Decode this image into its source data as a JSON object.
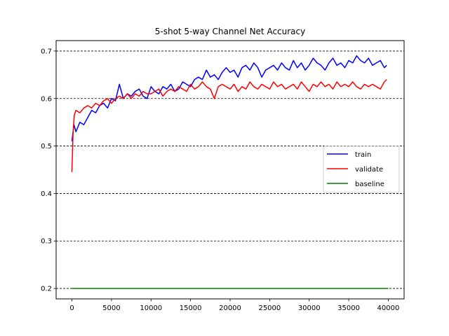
{
  "chart_data": {
    "type": "line",
    "title": "5-shot 5-way Channel Net Accuracy",
    "xlabel": "",
    "ylabel": "",
    "xlim": [
      -2000,
      42000
    ],
    "ylim": [
      0.178,
      0.722
    ],
    "xticks": [
      0,
      5000,
      10000,
      15000,
      20000,
      25000,
      30000,
      35000,
      40000
    ],
    "xtick_labels": [
      "0",
      "5000",
      "10000",
      "15000",
      "20000",
      "25000",
      "30000",
      "35000",
      "40000"
    ],
    "yticks": [
      0.2,
      0.3,
      0.4,
      0.5,
      0.6,
      0.7
    ],
    "ytick_labels": [
      "0.2",
      "0.3",
      "0.4",
      "0.5",
      "0.6",
      "0.7"
    ],
    "grid": "horizontal dashed",
    "legend_position": "center-right",
    "series": [
      {
        "name": "train",
        "color": "#0000ff",
        "x": [
          0,
          250,
          500,
          1000,
          1500,
          2000,
          2500,
          3000,
          3500,
          4000,
          4500,
          5000,
          5500,
          6000,
          6500,
          7000,
          7500,
          8000,
          8500,
          9000,
          9500,
          10000,
          10500,
          11000,
          11500,
          12000,
          12500,
          13000,
          13500,
          14000,
          14500,
          15000,
          15500,
          16000,
          16500,
          17000,
          17500,
          18000,
          18500,
          19000,
          19500,
          20000,
          20500,
          21000,
          21500,
          22000,
          22500,
          23000,
          23500,
          24000,
          24500,
          25000,
          25500,
          26000,
          26500,
          27000,
          27500,
          28000,
          28500,
          29000,
          29500,
          30000,
          30500,
          31000,
          31500,
          32000,
          32500,
          33000,
          33500,
          34000,
          34500,
          35000,
          35500,
          36000,
          36500,
          37000,
          37500,
          38000,
          38500,
          39000,
          39500,
          39800
        ],
        "y": [
          0.51,
          0.545,
          0.53,
          0.55,
          0.545,
          0.56,
          0.575,
          0.57,
          0.585,
          0.59,
          0.58,
          0.6,
          0.595,
          0.63,
          0.6,
          0.61,
          0.605,
          0.615,
          0.62,
          0.605,
          0.6,
          0.625,
          0.615,
          0.61,
          0.625,
          0.62,
          0.63,
          0.615,
          0.62,
          0.635,
          0.63,
          0.625,
          0.64,
          0.645,
          0.64,
          0.66,
          0.645,
          0.65,
          0.64,
          0.655,
          0.665,
          0.655,
          0.66,
          0.645,
          0.665,
          0.67,
          0.66,
          0.675,
          0.665,
          0.645,
          0.66,
          0.665,
          0.67,
          0.66,
          0.675,
          0.665,
          0.66,
          0.68,
          0.665,
          0.675,
          0.66,
          0.67,
          0.685,
          0.675,
          0.67,
          0.66,
          0.675,
          0.685,
          0.67,
          0.675,
          0.665,
          0.68,
          0.675,
          0.69,
          0.68,
          0.675,
          0.685,
          0.67,
          0.675,
          0.68,
          0.665,
          0.67
        ]
      },
      {
        "name": "validate",
        "color": "#ff0000",
        "x": [
          0,
          150,
          300,
          500,
          1000,
          1500,
          2000,
          2500,
          3000,
          3500,
          4000,
          4500,
          5000,
          5500,
          6000,
          6500,
          7000,
          7500,
          8000,
          8500,
          9000,
          9500,
          10000,
          10500,
          11000,
          11500,
          12000,
          12500,
          13000,
          13500,
          14000,
          14500,
          15000,
          15500,
          16000,
          16500,
          17000,
          17500,
          18000,
          18500,
          19000,
          19500,
          20000,
          20500,
          21000,
          21500,
          22000,
          22500,
          23000,
          23500,
          24000,
          24500,
          25000,
          25500,
          26000,
          26500,
          27000,
          27500,
          28000,
          28500,
          29000,
          29500,
          30000,
          30500,
          31000,
          31500,
          32000,
          32500,
          33000,
          33500,
          34000,
          34500,
          35000,
          35500,
          36000,
          36500,
          37000,
          37500,
          38000,
          38500,
          39000,
          39500,
          39800
        ],
        "y": [
          0.445,
          0.53,
          0.565,
          0.575,
          0.57,
          0.58,
          0.585,
          0.58,
          0.59,
          0.585,
          0.595,
          0.6,
          0.59,
          0.6,
          0.605,
          0.6,
          0.61,
          0.6,
          0.61,
          0.605,
          0.615,
          0.61,
          0.61,
          0.615,
          0.62,
          0.605,
          0.615,
          0.62,
          0.615,
          0.625,
          0.62,
          0.615,
          0.63,
          0.62,
          0.625,
          0.635,
          0.625,
          0.62,
          0.6,
          0.625,
          0.63,
          0.625,
          0.62,
          0.63,
          0.615,
          0.625,
          0.62,
          0.635,
          0.625,
          0.62,
          0.63,
          0.625,
          0.62,
          0.635,
          0.625,
          0.63,
          0.62,
          0.625,
          0.63,
          0.62,
          0.635,
          0.625,
          0.615,
          0.63,
          0.625,
          0.635,
          0.625,
          0.63,
          0.62,
          0.635,
          0.625,
          0.63,
          0.625,
          0.635,
          0.625,
          0.62,
          0.63,
          0.625,
          0.63,
          0.625,
          0.62,
          0.635,
          0.64
        ]
      },
      {
        "name": "baseline",
        "color": "#008000",
        "x": [
          0,
          40000
        ],
        "y": [
          0.2,
          0.2
        ]
      }
    ]
  }
}
